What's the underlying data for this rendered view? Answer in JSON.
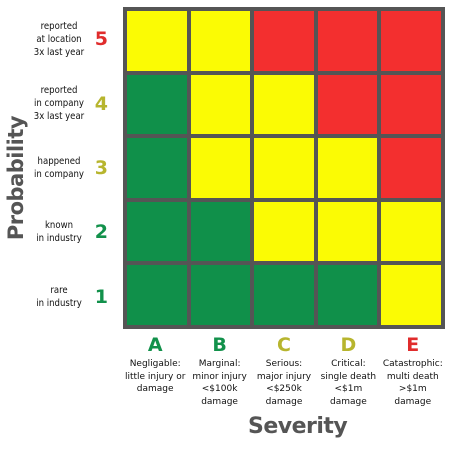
{
  "colors": {
    "green": "#10904a",
    "yellow": "#fbfb04",
    "red": "#f32f2f",
    "grid_line": "#555555",
    "code_red": "#e02c2c",
    "code_olive": "#b7b52e",
    "code_green": "#12914b"
  },
  "axes": {
    "y_title": "Probability",
    "x_title": "Severity"
  },
  "rows": [
    {
      "code": "5",
      "text": "reported\nat location\n3x last year",
      "code_color": "#e02c2c",
      "cells": [
        "yellow",
        "yellow",
        "red",
        "red",
        "red"
      ]
    },
    {
      "code": "4",
      "text": "reported\nin company\n3x last year",
      "code_color": "#b7b52e",
      "cells": [
        "green",
        "yellow",
        "yellow",
        "red",
        "red"
      ]
    },
    {
      "code": "3",
      "text": "happened\nin company",
      "code_color": "#b7b52e",
      "cells": [
        "green",
        "yellow",
        "yellow",
        "yellow",
        "red"
      ]
    },
    {
      "code": "2",
      "text": "known\nin industry",
      "code_color": "#12914b",
      "cells": [
        "green",
        "green",
        "yellow",
        "yellow",
        "yellow"
      ]
    },
    {
      "code": "1",
      "text": "rare\nin industry",
      "code_color": "#12914b",
      "cells": [
        "green",
        "green",
        "green",
        "green",
        "yellow"
      ]
    }
  ],
  "columns": [
    {
      "code": "A",
      "text": "Negligable:\nlittle injury or\ndamage",
      "code_color": "#12914b"
    },
    {
      "code": "B",
      "text": "Marginal:\nminor injury\n<$100k damage",
      "code_color": "#12914b"
    },
    {
      "code": "C",
      "text": "Serious:\nmajor injury\n<$250k damage",
      "code_color": "#b7b52e"
    },
    {
      "code": "D",
      "text": "Critical:\nsingle death\n<$1m damage",
      "code_color": "#b7b52e"
    },
    {
      "code": "E",
      "text": "Catastrophic:\nmulti death\n>$1m damage",
      "code_color": "#e02c2c"
    }
  ]
}
